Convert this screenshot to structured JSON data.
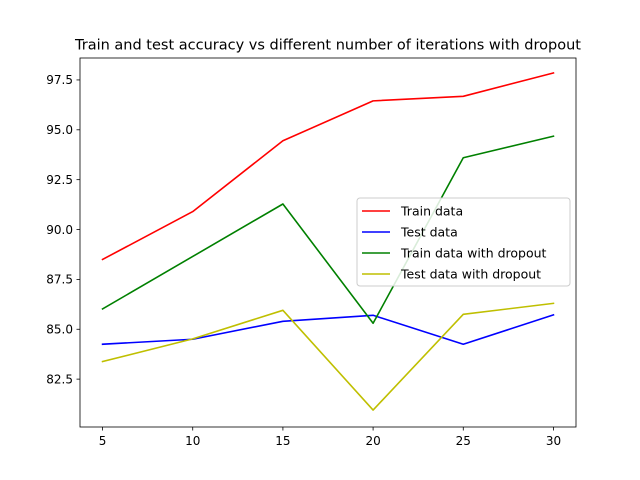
{
  "chart_data": {
    "type": "line",
    "title": "Train and test accuracy vs different number of iterations with dropout",
    "xlabel": "",
    "ylabel": "",
    "x": [
      5,
      10,
      15,
      20,
      25,
      30
    ],
    "xticks": [
      "5",
      "10",
      "15",
      "20",
      "25",
      "30"
    ],
    "yticks": [
      "82.5",
      "85.0",
      "87.5",
      "90.0",
      "92.5",
      "95.0",
      "97.5"
    ],
    "xlim": [
      3.75,
      31.25
    ],
    "ylim": [
      80.1,
      98.6
    ],
    "grid": false,
    "legend_position": "center-right",
    "series": [
      {
        "name": "Train data",
        "color": "#ff0000",
        "values": [
          88.5,
          90.9,
          94.45,
          96.45,
          96.68,
          97.85
        ]
      },
      {
        "name": "Test data",
        "color": "#0000ff",
        "values": [
          84.25,
          84.5,
          85.4,
          85.7,
          84.25,
          85.72
        ]
      },
      {
        "name": "Train data with dropout",
        "color": "#008000",
        "values": [
          86.02,
          88.65,
          91.28,
          85.3,
          93.6,
          94.68
        ]
      },
      {
        "name": "Test data with dropout",
        "color": "#bfbf00",
        "values": [
          83.38,
          84.52,
          85.95,
          80.95,
          85.75,
          86.3
        ]
      }
    ]
  }
}
